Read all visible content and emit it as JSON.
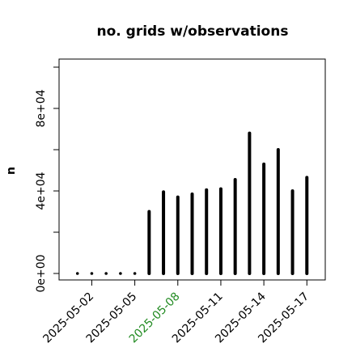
{
  "chart_data": {
    "type": "bar",
    "title": "no. grids w/observations",
    "xlabel": "",
    "ylabel": "n",
    "x_dates": [
      "2025-05-01",
      "2025-05-02",
      "2025-05-03",
      "2025-05-04",
      "2025-05-05",
      "2025-05-06",
      "2025-05-07",
      "2025-05-08",
      "2025-05-09",
      "2025-05-10",
      "2025-05-11",
      "2025-05-12",
      "2025-05-13",
      "2025-05-14",
      "2025-05-15",
      "2025-05-16",
      "2025-05-17"
    ],
    "values": [
      0,
      0,
      0,
      0,
      0,
      30000,
      39500,
      37000,
      38500,
      40500,
      41000,
      45500,
      68000,
      53000,
      60000,
      40000,
      46500
    ],
    "xlim": [
      "2025-04-30",
      "2025-05-18"
    ],
    "ylim": [
      0,
      100000
    ],
    "yticks": [
      0,
      20000,
      40000,
      60000,
      80000,
      100000
    ],
    "yticklabels": [
      "0e+00",
      "",
      "4e+04",
      "",
      "8e+04",
      ""
    ],
    "xticks": [
      "2025-05-02",
      "2025-05-05",
      "2025-05-08",
      "2025-05-11",
      "2025-05-14",
      "2025-05-17"
    ],
    "xticklabels": [
      "2025-05-02",
      "2025-05-05",
      "2025-05-08",
      "2025-05-11",
      "2025-05-14",
      "2025-05-17"
    ],
    "highlight_tick": "2025-05-08",
    "highlight_color": "#228b22",
    "bar_color": "#000000",
    "tick_color": "#000000"
  }
}
